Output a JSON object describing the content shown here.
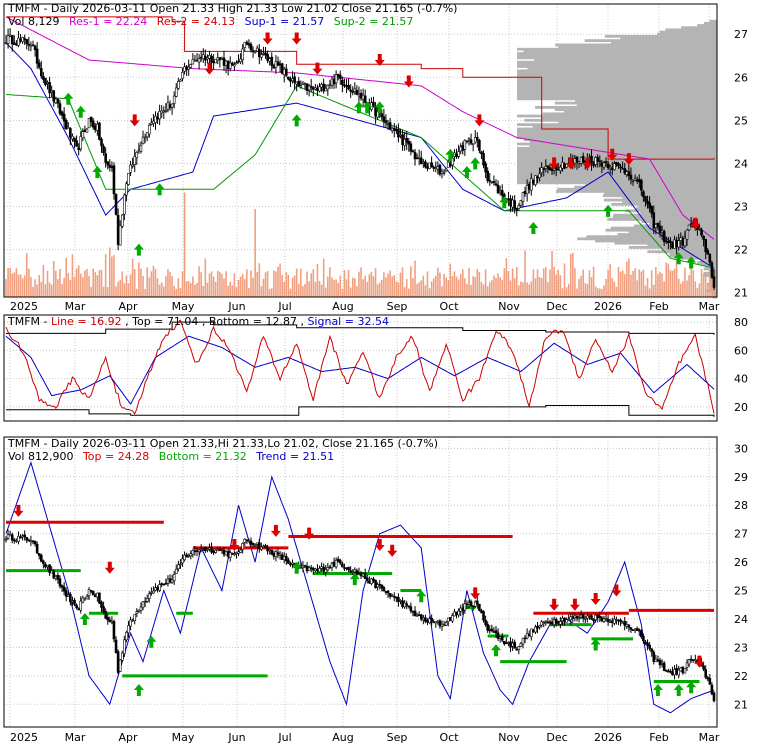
{
  "colors": {
    "frame": "#000000",
    "grid": "#c8c8c8",
    "candle": "#000000",
    "volume": "#f0a080",
    "volume_profile": "#b4b4b4",
    "resistance1": "#cc00cc",
    "resistance2": "#cc0000",
    "support1": "#0000cc",
    "support2": "#009900",
    "up_arrow": "#00aa00",
    "down_arrow": "#dd0000",
    "osc_line": "#cc0000",
    "osc_signal": "#0000cc",
    "osc_bounds": "#000000",
    "trend_line": "#0000cc",
    "top_band": "#dd0000",
    "bottom_band": "#00aa00",
    "trend_band": "#00aa00"
  },
  "months": [
    "2025",
    "Mar",
    "Apr",
    "May",
    "Jun",
    "Jul",
    "Aug",
    "Sep",
    "Oct",
    "Nov",
    "Dec",
    "2026",
    "Feb",
    "Mar"
  ],
  "chart_data": [
    {
      "type": "line",
      "panel": "price",
      "legend": {
        "row1": {
          "prefix": "TMFM - Daily 2026-03-11 Open 21.33  High 21.33  Low 21.02  Close 21.165 (-0.7%)"
        },
        "row2": {
          "vol": "Vol 8,129",
          "res1": "Res-1 = 22.24",
          "res2": "Res-2 = 24.13",
          "sup1": "Sup-1 = 21.57",
          "sup2": "Sup-2 = 21.57"
        }
      },
      "ylim": [
        20.9,
        27.7
      ],
      "y_ticks": [
        "21",
        "22",
        "23",
        "24",
        "25",
        "26",
        "27"
      ],
      "close_anchors": [
        [
          0,
          26.9
        ],
        [
          12,
          26.8
        ],
        [
          18,
          26.0
        ],
        [
          26,
          25.2
        ],
        [
          34,
          24.3
        ],
        [
          40,
          25.0
        ],
        [
          44,
          24.8
        ],
        [
          48,
          24.0
        ],
        [
          51,
          23.9
        ],
        [
          54,
          22.2
        ],
        [
          58,
          23.6
        ],
        [
          64,
          24.4
        ],
        [
          70,
          25.0
        ],
        [
          80,
          25.4
        ],
        [
          86,
          26.2
        ],
        [
          94,
          26.5
        ],
        [
          104,
          26.4
        ],
        [
          110,
          26.2
        ],
        [
          116,
          26.8
        ],
        [
          124,
          26.5
        ],
        [
          132,
          26.2
        ],
        [
          140,
          25.8
        ],
        [
          150,
          25.7
        ],
        [
          160,
          26.0
        ],
        [
          170,
          25.6
        ],
        [
          180,
          25.1
        ],
        [
          190,
          24.6
        ],
        [
          200,
          24.0
        ],
        [
          210,
          23.8
        ],
        [
          220,
          24.4
        ],
        [
          226,
          24.6
        ],
        [
          232,
          23.7
        ],
        [
          240,
          23.2
        ],
        [
          246,
          23.0
        ],
        [
          252,
          23.5
        ],
        [
          260,
          23.9
        ],
        [
          270,
          24.0
        ],
        [
          280,
          24.1
        ],
        [
          290,
          24.0
        ],
        [
          300,
          23.8
        ],
        [
          306,
          23.4
        ],
        [
          312,
          22.6
        ],
        [
          320,
          22.1
        ],
        [
          326,
          22.2
        ],
        [
          330,
          22.6
        ],
        [
          334,
          22.4
        ],
        [
          338,
          21.9
        ],
        [
          341,
          21.2
        ]
      ],
      "volume_spikes": [
        [
          86,
          0.95
        ],
        [
          120,
          0.8
        ],
        [
          50,
          0.45
        ],
        [
          10,
          0.4
        ],
        [
          96,
          0.35
        ],
        [
          150,
          0.3
        ],
        [
          300,
          0.35
        ]
      ],
      "res1_steps": [
        [
          0,
          27.4
        ],
        [
          40,
          26.4
        ],
        [
          90,
          26.2
        ],
        [
          140,
          26.1
        ],
        [
          200,
          25.8
        ],
        [
          220,
          25.2
        ],
        [
          246,
          24.6
        ],
        [
          310,
          24.1
        ],
        [
          326,
          22.8
        ],
        [
          341,
          22.24
        ]
      ],
      "res2_steps": [
        [
          0,
          27.4
        ],
        [
          80,
          27.3
        ],
        [
          86,
          26.6
        ],
        [
          140,
          26.3
        ],
        [
          200,
          26.2
        ],
        [
          220,
          26.0
        ],
        [
          258,
          24.8
        ],
        [
          290,
          24.1
        ],
        [
          341,
          24.13
        ]
      ],
      "sup1_steps": [
        [
          0,
          26.8
        ],
        [
          12,
          26.2
        ],
        [
          30,
          24.6
        ],
        [
          48,
          22.8
        ],
        [
          60,
          23.4
        ],
        [
          90,
          23.8
        ],
        [
          100,
          25.1
        ],
        [
          140,
          25.4
        ],
        [
          200,
          24.6
        ],
        [
          220,
          23.4
        ],
        [
          240,
          22.9
        ],
        [
          270,
          23.2
        ],
        [
          290,
          23.8
        ],
        [
          310,
          22.5
        ],
        [
          330,
          21.9
        ],
        [
          341,
          21.57
        ]
      ],
      "sup2_steps": [
        [
          0,
          25.6
        ],
        [
          30,
          25.5
        ],
        [
          48,
          23.4
        ],
        [
          100,
          23.4
        ],
        [
          120,
          24.2
        ],
        [
          140,
          25.8
        ],
        [
          200,
          24.6
        ],
        [
          240,
          22.9
        ],
        [
          300,
          22.9
        ],
        [
          320,
          21.8
        ],
        [
          341,
          21.57
        ]
      ],
      "arrows_up": [
        [
          30,
          25.5
        ],
        [
          36,
          25.2
        ],
        [
          44,
          23.8
        ],
        [
          64,
          22.0
        ],
        [
          74,
          23.4
        ],
        [
          140,
          25.0
        ],
        [
          170,
          25.3
        ],
        [
          174,
          25.3
        ],
        [
          180,
          25.3
        ],
        [
          214,
          24.2
        ],
        [
          222,
          23.8
        ],
        [
          226,
          24.0
        ],
        [
          240,
          23.1
        ],
        [
          254,
          22.5
        ],
        [
          290,
          22.9
        ],
        [
          324,
          21.8
        ],
        [
          330,
          21.7
        ]
      ],
      "arrows_down": [
        [
          62,
          25.0
        ],
        [
          98,
          26.2
        ],
        [
          126,
          26.9
        ],
        [
          140,
          26.9
        ],
        [
          150,
          26.2
        ],
        [
          180,
          26.4
        ],
        [
          194,
          25.9
        ],
        [
          228,
          25.0
        ],
        [
          264,
          24.0
        ],
        [
          272,
          24.0
        ],
        [
          280,
          24.0
        ],
        [
          292,
          24.2
        ],
        [
          300,
          24.1
        ],
        [
          332,
          22.6
        ]
      ]
    },
    {
      "type": "line",
      "panel": "oscillator",
      "legend": {
        "prefix": "TMFM - ",
        "line": "Line = 16.92",
        "top": "Top = 71.04",
        "bottom": "Bottom = 12.87",
        "signal": "Signal = 32.54"
      },
      "ylim": [
        10,
        85
      ],
      "y_ticks": [
        "20",
        "40",
        "60",
        "80"
      ],
      "line_anchors": [
        [
          0,
          75
        ],
        [
          8,
          60
        ],
        [
          16,
          25
        ],
        [
          24,
          20
        ],
        [
          32,
          40
        ],
        [
          40,
          25
        ],
        [
          48,
          55
        ],
        [
          56,
          18
        ],
        [
          62,
          15
        ],
        [
          68,
          40
        ],
        [
          76,
          70
        ],
        [
          84,
          80
        ],
        [
          92,
          50
        ],
        [
          100,
          75
        ],
        [
          108,
          60
        ],
        [
          116,
          30
        ],
        [
          124,
          70
        ],
        [
          132,
          40
        ],
        [
          140,
          65
        ],
        [
          148,
          25
        ],
        [
          156,
          70
        ],
        [
          164,
          35
        ],
        [
          172,
          60
        ],
        [
          180,
          25
        ],
        [
          188,
          55
        ],
        [
          196,
          70
        ],
        [
          204,
          30
        ],
        [
          212,
          65
        ],
        [
          220,
          25
        ],
        [
          228,
          40
        ],
        [
          236,
          75
        ],
        [
          244,
          60
        ],
        [
          252,
          20
        ],
        [
          260,
          70
        ],
        [
          268,
          75
        ],
        [
          276,
          40
        ],
        [
          284,
          68
        ],
        [
          292,
          45
        ],
        [
          300,
          70
        ],
        [
          308,
          30
        ],
        [
          316,
          18
        ],
        [
          324,
          50
        ],
        [
          332,
          70
        ],
        [
          341,
          17
        ]
      ],
      "signal_anchors": [
        [
          0,
          70
        ],
        [
          12,
          55
        ],
        [
          22,
          28
        ],
        [
          36,
          32
        ],
        [
          50,
          42
        ],
        [
          60,
          22
        ],
        [
          72,
          55
        ],
        [
          88,
          70
        ],
        [
          104,
          62
        ],
        [
          120,
          48
        ],
        [
          136,
          55
        ],
        [
          152,
          45
        ],
        [
          168,
          48
        ],
        [
          184,
          40
        ],
        [
          200,
          55
        ],
        [
          216,
          42
        ],
        [
          232,
          55
        ],
        [
          248,
          45
        ],
        [
          264,
          65
        ],
        [
          280,
          50
        ],
        [
          296,
          58
        ],
        [
          312,
          30
        ],
        [
          328,
          50
        ],
        [
          341,
          32.5
        ]
      ],
      "top_steps": [
        [
          0,
          72
        ],
        [
          40,
          72
        ],
        [
          48,
          75
        ],
        [
          80,
          80
        ],
        [
          100,
          78
        ],
        [
          140,
          76
        ],
        [
          180,
          76
        ],
        [
          220,
          74
        ],
        [
          260,
          73
        ],
        [
          300,
          72
        ],
        [
          341,
          71.04
        ]
      ],
      "bottom_steps": [
        [
          0,
          18
        ],
        [
          40,
          15
        ],
        [
          60,
          14
        ],
        [
          140,
          14
        ],
        [
          141,
          20
        ],
        [
          200,
          20
        ],
        [
          260,
          21
        ],
        [
          300,
          14
        ],
        [
          341,
          12.87
        ]
      ]
    },
    {
      "type": "line",
      "panel": "trend",
      "legend": {
        "row1": "TMFM - Daily 2026-03-11 Open 21.33,Hi 21.33,Lo 21.02, Close 21.165 (-0.7%)",
        "row2": {
          "vol": "Vol 812,900",
          "top": "Top = 24.28",
          "bottom": "Bottom = 21.32",
          "trend": "Trend = 21.51"
        }
      },
      "ylim": [
        20.2,
        30.4
      ],
      "y_ticks": [
        "21",
        "22",
        "23",
        "24",
        "25",
        "26",
        "27",
        "28",
        "29",
        "30"
      ],
      "trend_anchors": [
        [
          0,
          27.0
        ],
        [
          12,
          29.5
        ],
        [
          20,
          27.5
        ],
        [
          30,
          25.0
        ],
        [
          40,
          22.0
        ],
        [
          50,
          21.0
        ],
        [
          60,
          23.5
        ],
        [
          66,
          22.5
        ],
        [
          76,
          25.0
        ],
        [
          84,
          23.5
        ],
        [
          94,
          26.5
        ],
        [
          104,
          25.0
        ],
        [
          112,
          28.0
        ],
        [
          120,
          26.0
        ],
        [
          128,
          29.0
        ],
        [
          136,
          27.5
        ],
        [
          144,
          25.5
        ],
        [
          156,
          22.5
        ],
        [
          164,
          21.0
        ],
        [
          172,
          25.0
        ],
        [
          180,
          27.0
        ],
        [
          190,
          27.3
        ],
        [
          200,
          26.5
        ],
        [
          208,
          22.0
        ],
        [
          214,
          21.2
        ],
        [
          222,
          25.0
        ],
        [
          230,
          22.8
        ],
        [
          238,
          21.5
        ],
        [
          244,
          21.0
        ],
        [
          252,
          22.5
        ],
        [
          262,
          23.8
        ],
        [
          270,
          24.0
        ],
        [
          280,
          23.5
        ],
        [
          290,
          24.6
        ],
        [
          298,
          26.0
        ],
        [
          306,
          23.8
        ],
        [
          312,
          21.0
        ],
        [
          320,
          20.7
        ],
        [
          330,
          21.2
        ],
        [
          341,
          21.5
        ]
      ],
      "top_segments": [
        [
          [
            0,
            27.4
          ],
          [
            76,
            27.4
          ]
        ],
        [
          [
            90,
            26.5
          ],
          [
            136,
            26.5
          ]
        ],
        [
          [
            136,
            26.9
          ],
          [
            244,
            26.9
          ]
        ],
        [
          [
            254,
            24.2
          ],
          [
            300,
            24.2
          ]
        ],
        [
          [
            300,
            24.3
          ],
          [
            341,
            24.3
          ]
        ]
      ],
      "bottom_segments": [
        [
          [
            56,
            22.0
          ],
          [
            126,
            22.0
          ]
        ],
        [
          [
            238,
            22.5
          ],
          [
            270,
            22.5
          ]
        ]
      ],
      "trend_segments": [
        [
          [
            0,
            25.7
          ],
          [
            36,
            25.7
          ]
        ],
        [
          [
            40,
            24.2
          ],
          [
            54,
            24.2
          ]
        ],
        [
          [
            82,
            24.2
          ],
          [
            90,
            24.2
          ]
        ],
        [
          [
            148,
            25.6
          ],
          [
            186,
            25.6
          ]
        ],
        [
          [
            190,
            25.0
          ],
          [
            200,
            25.0
          ]
        ],
        [
          [
            220,
            24.4
          ],
          [
            226,
            24.4
          ]
        ],
        [
          [
            232,
            23.4
          ],
          [
            242,
            23.4
          ]
        ],
        [
          [
            262,
            23.8
          ],
          [
            282,
            23.8
          ]
        ],
        [
          [
            282,
            23.3
          ],
          [
            302,
            23.3
          ]
        ],
        [
          [
            312,
            21.8
          ],
          [
            334,
            21.8
          ]
        ]
      ],
      "arrows_up": [
        [
          38,
          24.0
        ],
        [
          64,
          21.5
        ],
        [
          70,
          23.2
        ],
        [
          140,
          25.8
        ],
        [
          168,
          25.4
        ],
        [
          200,
          24.8
        ],
        [
          236,
          22.9
        ],
        [
          284,
          23.1
        ],
        [
          314,
          21.5
        ],
        [
          324,
          21.5
        ],
        [
          330,
          21.6
        ]
      ],
      "arrows_down": [
        [
          6,
          27.8
        ],
        [
          50,
          25.8
        ],
        [
          110,
          26.6
        ],
        [
          130,
          27.1
        ],
        [
          146,
          27.0
        ],
        [
          180,
          26.6
        ],
        [
          186,
          26.4
        ],
        [
          226,
          24.9
        ],
        [
          264,
          24.5
        ],
        [
          274,
          24.5
        ],
        [
          284,
          24.7
        ],
        [
          294,
          25.0
        ],
        [
          334,
          22.5
        ]
      ]
    }
  ]
}
